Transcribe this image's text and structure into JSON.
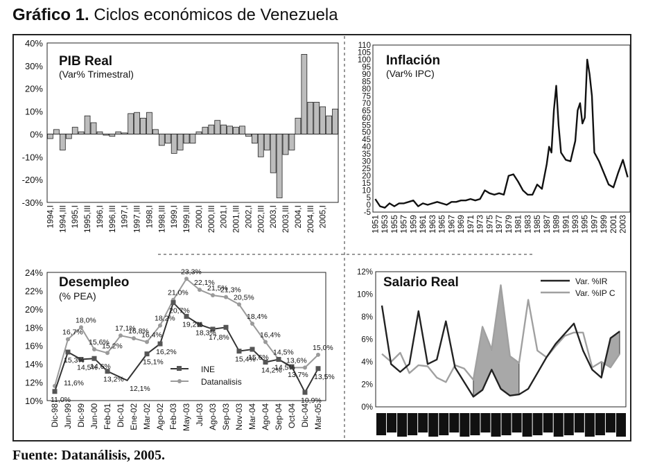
{
  "figure": {
    "label": "Gráfico 1.",
    "title": "Ciclos económicos de Venezuela",
    "source": "Fuente: Datanálisis, 2005."
  },
  "chart_data": [
    {
      "id": "pib",
      "type": "bar",
      "title": "PIB Real",
      "subtitle": "(Var% Trimestral)",
      "ylim": [
        -30,
        40
      ],
      "yticks": [
        "40%",
        "30%",
        "20%",
        "10%",
        "0%",
        "-10%",
        "-20%",
        "-30%"
      ],
      "xticks": [
        "1994,I",
        "1994,III",
        "1995,I",
        "1995,III",
        "1996,I",
        "1996,III",
        "1997,I",
        "1997,III",
        "1998,I",
        "1998,III",
        "1999,I",
        "1999,III",
        "2000,I",
        "2000,III",
        "2001,I",
        "2001,III",
        "2002,I",
        "2002,III",
        "2003,I",
        "2003,III",
        "2004,I",
        "2004,III",
        "2005,I"
      ],
      "values": [
        -2,
        2,
        -7,
        -2,
        3,
        1,
        8,
        5,
        1,
        -0.5,
        -1,
        1,
        0.5,
        9,
        9.5,
        7,
        9.5,
        2,
        -5,
        -4,
        -8.5,
        -7,
        -4,
        -4,
        1,
        3,
        4,
        6,
        4,
        3.5,
        3,
        3.5,
        -1,
        -4,
        -10,
        -7,
        -17,
        -28,
        -9,
        -7,
        7,
        35,
        14,
        14,
        12,
        8,
        11
      ]
    },
    {
      "id": "inflacion",
      "type": "line",
      "title": "Inflación",
      "subtitle": "(Var% IPC)",
      "ylim": [
        -5,
        110
      ],
      "yticks": [
        "110",
        "105",
        "100",
        "95",
        "90",
        "85",
        "80",
        "75",
        "70",
        "65",
        "60",
        "55",
        "50",
        "45",
        "40",
        "35",
        "30",
        "25",
        "20",
        "15",
        "10",
        "5",
        "0",
        "-5"
      ],
      "xticks": [
        "1951",
        "1953",
        "1955",
        "1957",
        "1959",
        "1961",
        "1963",
        "1965",
        "1967",
        "1969",
        "1971",
        "1973",
        "1975",
        "1977",
        "1979",
        "1981",
        "1983",
        "1985",
        "1987",
        "1989",
        "1991",
        "1993",
        "1995",
        "1997",
        "1999",
        "2001",
        "2003"
      ],
      "x": [
        1951,
        1952,
        1953,
        1954,
        1955,
        1956,
        1957,
        1958,
        1959,
        1960,
        1961,
        1962,
        1963,
        1964,
        1965,
        1966,
        1967,
        1968,
        1969,
        1970,
        1971,
        1972,
        1973,
        1974,
        1975,
        1976,
        1977,
        1978,
        1979,
        1980,
        1981,
        1982,
        1983,
        1984,
        1985,
        1986,
        1987,
        1987.5,
        1988,
        1988.5,
        1989,
        1989.5,
        1990,
        1991,
        1992,
        1993,
        1993.5,
        1994,
        1994.5,
        1995,
        1995.5,
        1996,
        1996.5,
        1997,
        1998,
        1999,
        2000,
        2001,
        2002,
        2003,
        2004
      ],
      "values": [
        4,
        -1,
        -2,
        1,
        -1,
        1,
        1,
        2,
        3,
        -1,
        1,
        0,
        1,
        2,
        1,
        0,
        2,
        2,
        3,
        3,
        4,
        3,
        4,
        10,
        8,
        7,
        8,
        7,
        20,
        21,
        16,
        10,
        7,
        7,
        14,
        11,
        28,
        40,
        36,
        65,
        82,
        55,
        36,
        31,
        30,
        44,
        65,
        70,
        56,
        60,
        100,
        90,
        75,
        36,
        30,
        22,
        14,
        12,
        22,
        31,
        19
      ]
    },
    {
      "id": "desempleo",
      "type": "line",
      "title": "Desempleo",
      "subtitle": "(% PEA)",
      "ylim": [
        10,
        24
      ],
      "yticks": [
        "24%",
        "22%",
        "20%",
        "18%",
        "16%",
        "14%",
        "12%",
        "10%"
      ],
      "xticks": [
        "Dic-98",
        "Jun-99",
        "Dic-99",
        "Jun-00",
        "Feb-01",
        "Dic-01",
        "Ene-02",
        "Mar-02",
        "Ago-02",
        "Feb-03",
        "May-03",
        "Jul-03",
        "Ago-03",
        "Sep-03",
        "Nov-03",
        "Mar-04",
        "Ago-04",
        "Sep-04",
        "Oct-04",
        "Dic-04",
        "Mar-05"
      ],
      "legend": [
        "INE",
        "Datanalisis"
      ],
      "series": [
        {
          "name": "INE",
          "values": [
            11.0,
            15.3,
            14.5,
            14.6,
            13.2,
            null,
            null,
            15.1,
            16.2,
            20.7,
            19.2,
            18.3,
            17.8,
            18.0,
            15.4,
            15.6,
            14.2,
            14.5,
            13.7,
            10.9,
            13.5
          ]
        },
        {
          "name": "Datanalisis",
          "values": [
            11.6,
            16.7,
            18.0,
            15.6,
            15.2,
            17.1,
            16.8,
            16.4,
            18.2,
            21.0,
            23.3,
            22.1,
            21.5,
            21.3,
            20.5,
            18.4,
            16.4,
            14.5,
            13.6,
            13.6,
            15.0
          ]
        }
      ],
      "ine_labels": [
        "11,0%",
        "15,3%",
        "14,5%",
        "14,6%",
        "13,2%",
        "",
        "12,1%",
        "15,1%",
        "16,2%",
        "20,7%",
        "19,2%",
        "18,3%",
        "17,8%",
        "",
        "15,4%",
        "15,6%",
        "14,2%",
        "14,5%",
        "13,7%",
        "10,9%",
        "13,5%"
      ],
      "dat_labels": [
        "",
        "16,7%",
        "18,0%",
        "15,6%",
        "15,2%",
        "17,1%",
        "16,8%",
        "16,4%",
        "18,2%",
        "21,0%",
        "23,3%",
        "22,1%",
        "21,5%",
        "21,3%",
        "20,5%",
        "18,4%",
        "16,4%",
        "14,5%",
        "13,6%",
        "",
        "15,0%"
      ],
      "extra_labels": [
        "11,6%",
        "16,8%",
        "15,6%",
        "18,0%"
      ]
    },
    {
      "id": "salario",
      "type": "line",
      "title": "Salario Real",
      "ylim": [
        0,
        12
      ],
      "yticks": [
        "12%",
        "10%",
        "8%",
        "6%",
        "4%",
        "2%",
        "0%"
      ],
      "legend": [
        "Var. %IR",
        "Var. %IP C"
      ],
      "series": [
        {
          "name": "Var. %IR",
          "values": [
            9,
            3.8,
            3.1,
            3.8,
            8.5,
            3.8,
            4.2,
            7.6,
            3.5,
            2.2,
            0.9,
            1.5,
            3.3,
            1.6,
            1.0,
            1.1,
            1.6,
            3.0,
            4.4,
            5.6,
            6.5,
            7.4,
            5.0,
            3.3,
            2.6,
            6.1,
            6.7
          ]
        },
        {
          "name": "Var. %IP C",
          "values": [
            4.7,
            4.0,
            4.8,
            3.0,
            3.7,
            3.6,
            2.6,
            2.2,
            3.7,
            3.4,
            2.4,
            7.1,
            5.1,
            10.8,
            4.5,
            3.9,
            9.5,
            5.0,
            4.4,
            5.4,
            6.3,
            6.6,
            6.6,
            3.5,
            4.0,
            3.5,
            4.7
          ]
        }
      ]
    }
  ]
}
